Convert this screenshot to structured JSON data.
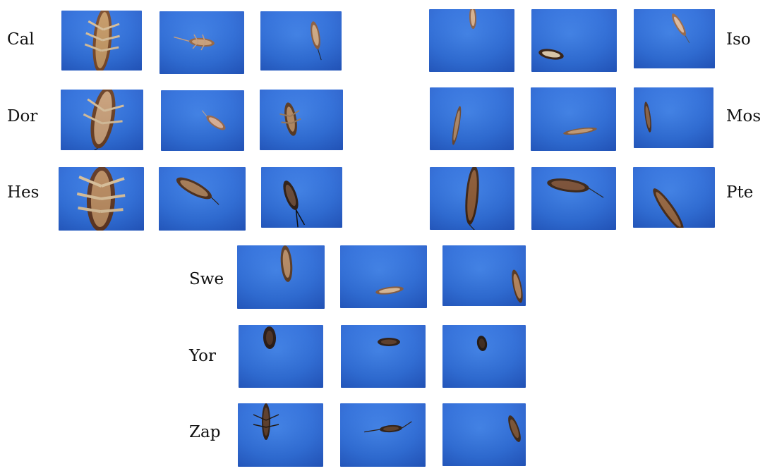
{
  "rows": [
    {
      "label": "Cal"
    },
    {
      "label": "Dor"
    },
    {
      "label": "Hes"
    },
    {
      "label": "Iso"
    },
    {
      "label": "Mos"
    },
    {
      "label": "Pte"
    },
    {
      "label": "Swe"
    },
    {
      "label": "Yor"
    },
    {
      "label": "Zap"
    }
  ]
}
